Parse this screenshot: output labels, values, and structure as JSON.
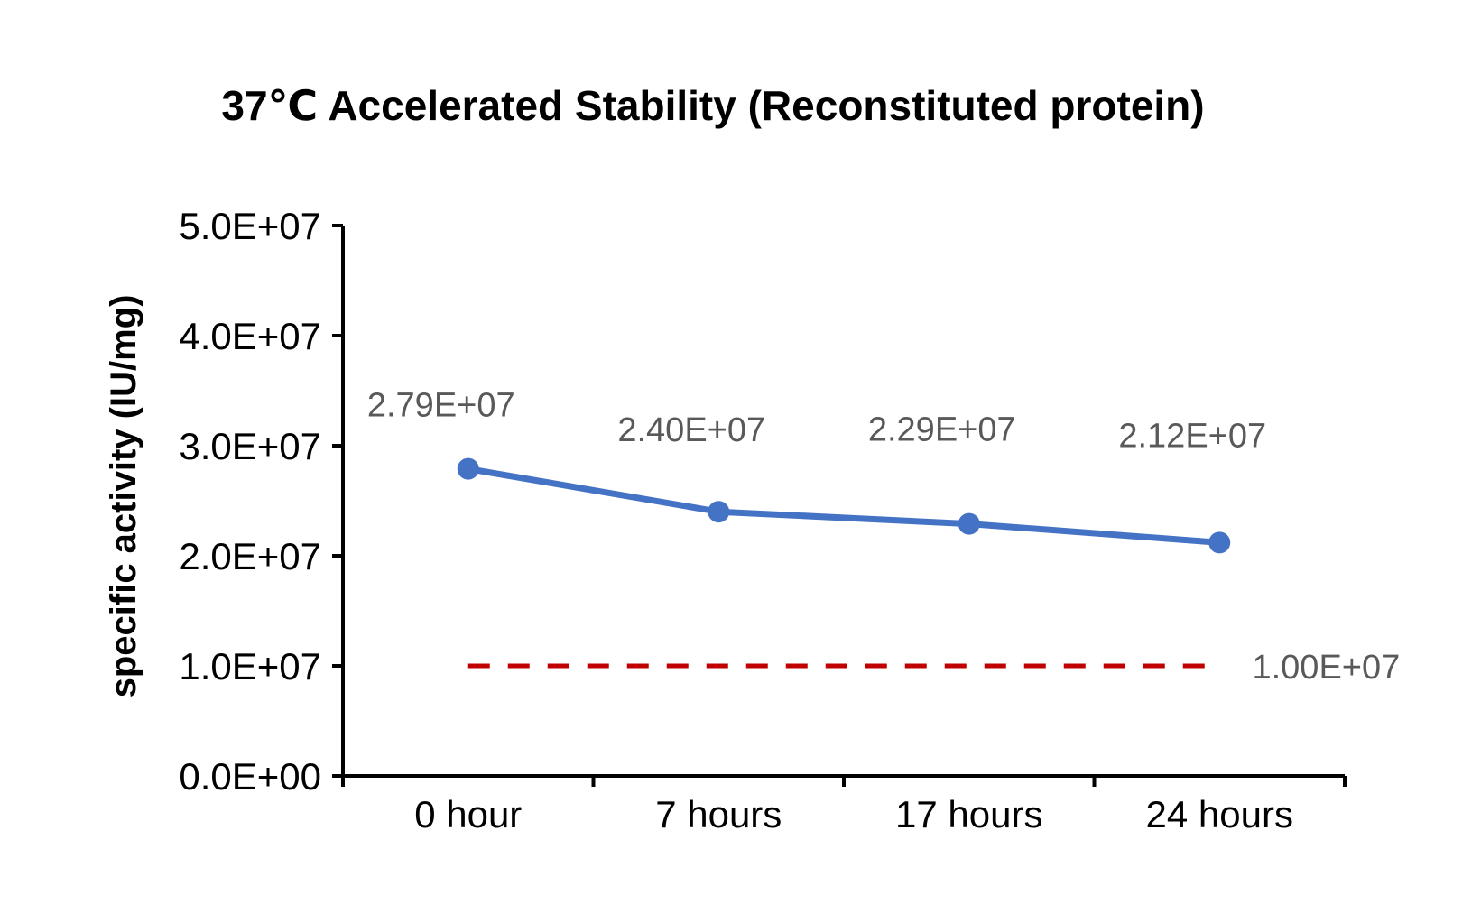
{
  "chart_data": {
    "type": "line",
    "title": "37℃ Accelerated  Stability (Reconstituted protein)",
    "xlabel": "",
    "ylabel": "specific activity (IU/mg)",
    "categories": [
      "0 hour",
      "7 hours",
      "17 hours",
      "24 hours"
    ],
    "ylim": [
      0,
      50000000
    ],
    "yticks": [
      {
        "value": 0,
        "label": "0.0E+00"
      },
      {
        "value": 10000000,
        "label": "1.0E+07"
      },
      {
        "value": 20000000,
        "label": "2.0E+07"
      },
      {
        "value": 30000000,
        "label": "3.0E+07"
      },
      {
        "value": 40000000,
        "label": "4.0E+07"
      },
      {
        "value": 50000000,
        "label": "5.0E+07"
      }
    ],
    "grid": false,
    "legend": "none",
    "series": [
      {
        "values": [
          27900000,
          24000000,
          22900000,
          21200000
        ],
        "labels": [
          "2.79E+07",
          "2.40E+07",
          "2.29E+07",
          "2.12E+07"
        ],
        "color": "#4472C4",
        "style": "solid-markers"
      },
      {
        "values": [
          10000000,
          10000000,
          10000000,
          10000000
        ],
        "labels": [
          "1.00E+07"
        ],
        "color": "#C00000",
        "style": "dashed"
      }
    ]
  }
}
